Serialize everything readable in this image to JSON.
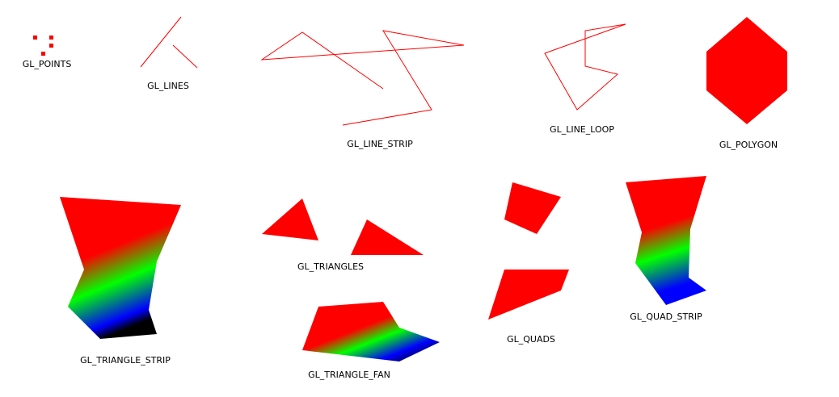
{
  "labels": {
    "points": "GL_POINTS",
    "lines": "GL_LINES",
    "line_strip": "GL_LINE_STRIP",
    "line_loop": "GL_LINE_LOOP",
    "polygon": "GL_POLYGON",
    "triangle_strip": "GL_TRIANGLE_STRIP",
    "triangles": "GL_TRIANGLES",
    "triangle_fan": "GL_TRIANGLE_FAN",
    "quads": "GL_QUADS",
    "quad_strip": "GL_QUAD_STRIP"
  },
  "colors": {
    "primary": "#ff0000",
    "green": "#00ff00",
    "blue": "#0000ff",
    "black": "#000000",
    "background": "#ffffff",
    "label_text": "#000000"
  }
}
